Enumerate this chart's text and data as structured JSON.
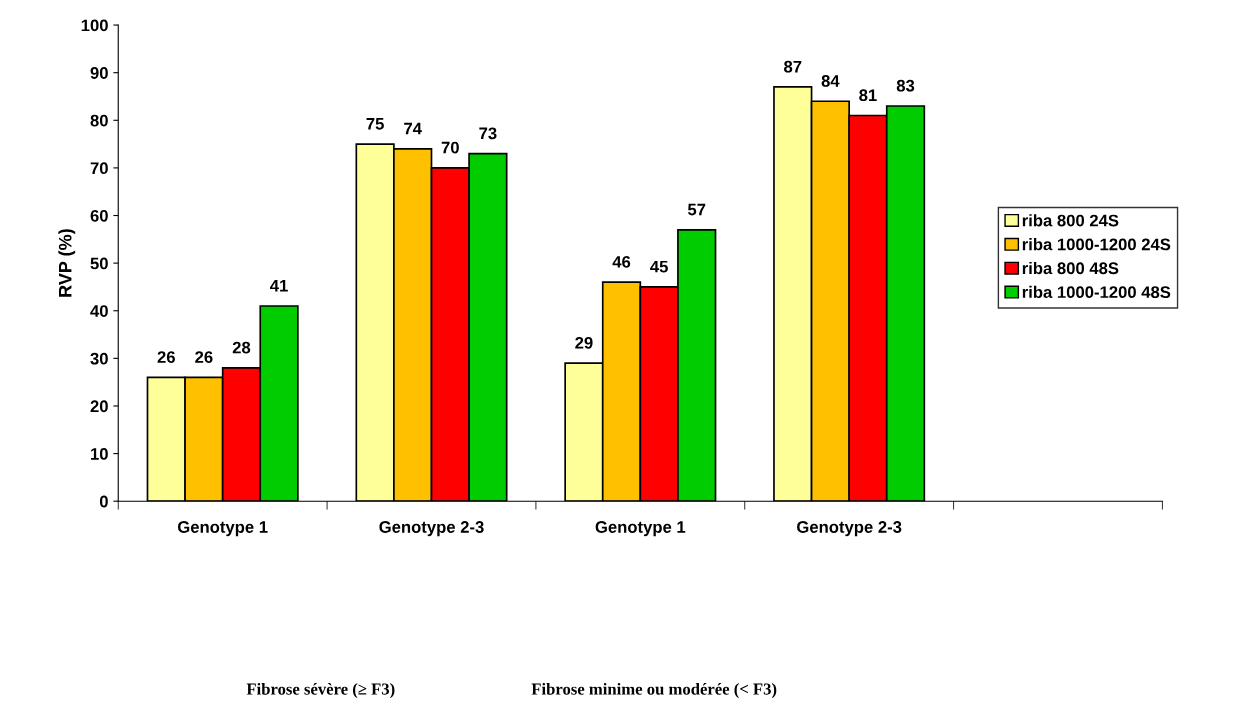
{
  "chart_data": {
    "type": "bar",
    "ylabel": "RVP (%)",
    "categories": [
      "Genotype 1",
      "Genotype 2-3",
      "Genotype 1",
      "Genotype 2-3",
      null
    ],
    "series": [
      {
        "name": "riba 800 24S",
        "color": "#ffff99",
        "values": [
          26,
          75,
          29,
          87,
          null
        ]
      },
      {
        "name": "riba 1000-1200 24S",
        "color": "#ffc000",
        "values": [
          26,
          74,
          46,
          84,
          null
        ]
      },
      {
        "name": "riba 800 48S",
        "color": "#ff0000",
        "values": [
          28,
          70,
          45,
          81,
          null
        ]
      },
      {
        "name": "riba 1000-1200 48S",
        "color": "#00cc00",
        "values": [
          41,
          73,
          57,
          83,
          null
        ]
      }
    ],
    "ylim": [
      0,
      100
    ],
    "yticks": [
      0,
      10,
      20,
      30,
      40,
      50,
      60,
      70,
      80,
      90,
      100
    ],
    "data_labels": true,
    "grid": false,
    "legend": "right",
    "annotations": [
      "Fibrose sévère (≥ F3)",
      "Fibrose minime ou modérée (< F3)"
    ]
  }
}
